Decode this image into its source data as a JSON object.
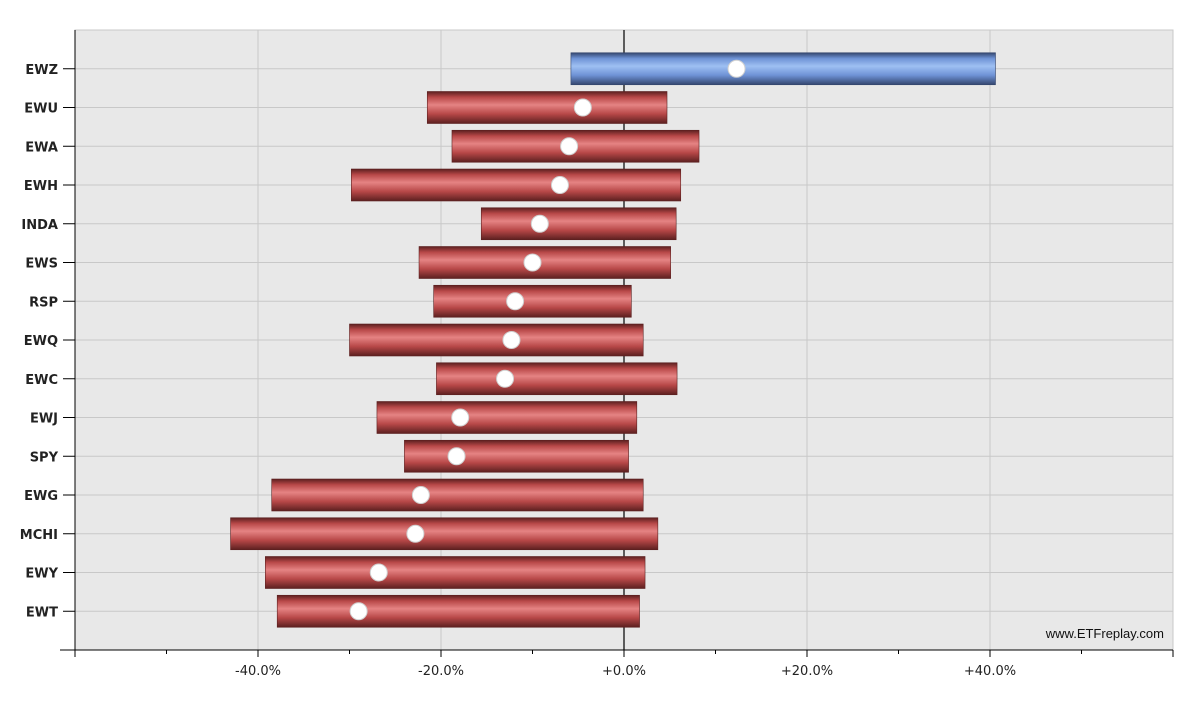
{
  "watermark": "www.ETFreplay.com",
  "colors": {
    "plot_background": "#e8e8e8",
    "gridline": "#c8c8c8",
    "zero_line": "#000000",
    "negative_bar_light": "#e58383",
    "negative_bar_mid": "#b84848",
    "negative_bar_dark": "#5c2020",
    "positive_bar_light": "#9ec0f2",
    "positive_bar_mid": "#6f93d6",
    "positive_bar_dark": "#34466e",
    "marker": "#ffffff"
  },
  "chart_data": {
    "type": "bar",
    "orientation": "horizontal-range",
    "title": "",
    "xlabel": "",
    "ylabel": "",
    "xlim": [
      -60,
      60
    ],
    "x_tick_values": [
      -40,
      -20,
      0,
      20,
      40
    ],
    "x_tick_labels": [
      "-40.0%",
      "-20.0%",
      "+0.0%",
      "+20.0%",
      "+40.0%"
    ],
    "grid": true,
    "legend": "none",
    "categories": [
      "EWZ",
      "EWU",
      "EWA",
      "EWH",
      "INDA",
      "EWS",
      "RSP",
      "EWQ",
      "EWC",
      "EWJ",
      "SPY",
      "EWG",
      "MCHI",
      "EWY",
      "EWT"
    ],
    "series": [
      {
        "low": [
          -5.8,
          -21.5,
          -18.8,
          -29.8,
          -15.6,
          -22.4,
          -20.8,
          -30.0,
          -20.5,
          -27.0,
          -24.0,
          -38.5,
          -43.0,
          -39.2,
          -37.9
        ],
        "high": [
          40.6,
          4.7,
          8.2,
          6.2,
          5.7,
          5.1,
          0.8,
          2.1,
          5.8,
          1.4,
          0.5,
          2.1,
          3.7,
          2.3,
          1.7
        ],
        "current": [
          12.3,
          -4.5,
          -6.0,
          -7.0,
          -9.2,
          -10.0,
          -11.9,
          -12.3,
          -13.0,
          -17.9,
          -18.3,
          -22.2,
          -22.8,
          -26.8,
          -29.0
        ]
      }
    ]
  }
}
